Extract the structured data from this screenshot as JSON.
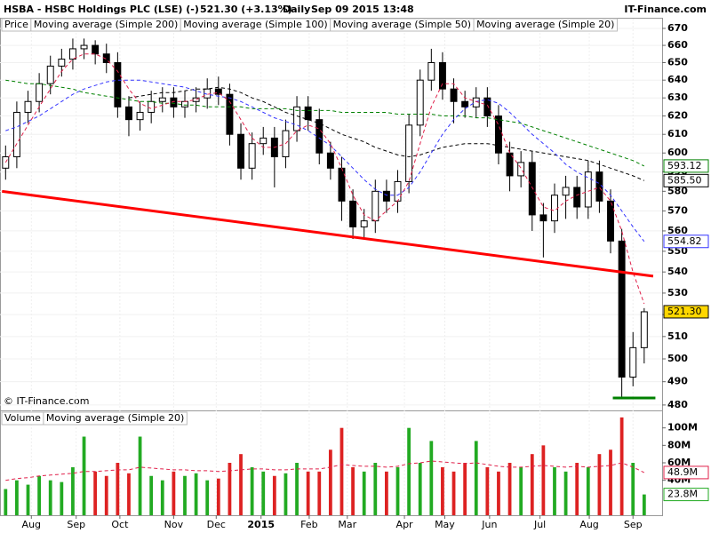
{
  "header": {
    "symbol": "HSBA - HSBC Holdings PLC (LSE) (-)",
    "quote": "521.30 (+3.13%)",
    "interval": "Daily",
    "timestamp": "Sep 09 2015 13:48",
    "brand": "IT-Finance.com"
  },
  "chart_data": [
    {
      "type": "candlestick",
      "log_scale": true,
      "ylim": [
        477.7,
        675.8
      ],
      "xlim": [
        -0.5,
        58.6
      ],
      "yticks": [
        480,
        490,
        500,
        510,
        520,
        530,
        540,
        550,
        560,
        570,
        580,
        590,
        600,
        610,
        620,
        630,
        640,
        650,
        660,
        670
      ],
      "annotations": [
        "© IT-Finance.com"
      ],
      "series": [
        {
          "name": "Price",
          "color": "#000000",
          "badge": "521.30",
          "open": [
            592,
            598,
            622,
            628,
            638,
            648,
            652,
            658,
            660,
            655,
            650,
            625,
            618,
            622,
            628,
            630,
            625,
            628,
            630,
            635,
            632,
            610,
            592,
            605,
            608,
            598,
            612,
            625,
            618,
            600,
            592,
            575,
            562,
            565,
            580,
            575,
            585,
            615,
            640,
            650,
            635,
            628,
            625,
            630,
            620,
            600,
            588,
            595,
            568,
            565,
            578,
            582,
            572,
            590,
            575,
            555,
            492,
            505
          ],
          "high": [
            604,
            628,
            634,
            644,
            654,
            658,
            664,
            664,
            663,
            661,
            656,
            631,
            628,
            634,
            636,
            636,
            634,
            636,
            641,
            642,
            638,
            616,
            611,
            614,
            614,
            618,
            631,
            631,
            624,
            606,
            598,
            581,
            571,
            586,
            586,
            591,
            621,
            646,
            658,
            656,
            641,
            634,
            636,
            636,
            626,
            606,
            601,
            601,
            574,
            584,
            588,
            588,
            596,
            596,
            581,
            561,
            512,
            523
          ],
          "low": [
            586,
            592,
            616,
            622,
            632,
            642,
            646,
            652,
            649,
            644,
            619,
            609,
            612,
            616,
            622,
            619,
            619,
            622,
            624,
            626,
            604,
            586,
            586,
            599,
            582,
            592,
            606,
            612,
            594,
            586,
            565,
            556,
            556,
            559,
            569,
            569,
            579,
            609,
            634,
            629,
            616,
            619,
            619,
            614,
            594,
            580,
            582,
            560,
            547,
            559,
            566,
            566,
            566,
            569,
            549,
            483,
            488,
            498
          ],
          "close": [
            598,
            622,
            628,
            638,
            648,
            652,
            658,
            660,
            655,
            650,
            625,
            618,
            622,
            628,
            630,
            625,
            628,
            630,
            635,
            632,
            610,
            592,
            605,
            608,
            598,
            612,
            625,
            618,
            600,
            592,
            575,
            562,
            565,
            580,
            575,
            585,
            615,
            640,
            650,
            635,
            628,
            625,
            630,
            620,
            600,
            588,
            595,
            568,
            565,
            578,
            582,
            572,
            590,
            575,
            555,
            492,
            505,
            521.3
          ]
        },
        {
          "name": "Moving average (Simple 200)",
          "color": "#008000",
          "badge": "593.12",
          "values": [
            640,
            639,
            638,
            638,
            637,
            636,
            635,
            633,
            632,
            631,
            630,
            629,
            628,
            628,
            627,
            627,
            626,
            626,
            625,
            625,
            625,
            625,
            624,
            624,
            624,
            624,
            623,
            623,
            623,
            623,
            622,
            622,
            622,
            622,
            622,
            621,
            621,
            621,
            621,
            620,
            620,
            620,
            619,
            619,
            618,
            617,
            616,
            614,
            612,
            610,
            608,
            606,
            604,
            602,
            600,
            598,
            596,
            593.12
          ]
        },
        {
          "name": "Moving average (Simple 100)",
          "color": "#000000",
          "badge": "585.50",
          "values": [
            null,
            null,
            null,
            null,
            null,
            null,
            null,
            null,
            null,
            null,
            null,
            630,
            631,
            632,
            633,
            633,
            634,
            635,
            635,
            636,
            635,
            633,
            630,
            628,
            625,
            622,
            620,
            618,
            616,
            613,
            610,
            608,
            606,
            603,
            601,
            599,
            598,
            599,
            601,
            603,
            604,
            605,
            605,
            605,
            604,
            603,
            602,
            601,
            600,
            599,
            598,
            597,
            596,
            594,
            592,
            590,
            588,
            585.5
          ]
        },
        {
          "name": "Moving average (Simple 50)",
          "color": "#3333ff",
          "badge": "554.82",
          "values": [
            612,
            614,
            617,
            620,
            624,
            628,
            632,
            635,
            637,
            639,
            640,
            640,
            640,
            639,
            638,
            637,
            636,
            634,
            632,
            631,
            630,
            628,
            625,
            622,
            619,
            617,
            615,
            612,
            608,
            604,
            598,
            592,
            586,
            581,
            578,
            578,
            582,
            590,
            600,
            610,
            618,
            624,
            628,
            629,
            627,
            622,
            616,
            610,
            605,
            600,
            594,
            590,
            587,
            584,
            578,
            570,
            562,
            554.82
          ]
        },
        {
          "name": "Moving average (Simple 20)",
          "color": "#e0204a",
          "values": [
            595,
            605,
            615,
            625,
            635,
            645,
            652,
            655,
            655,
            652,
            645,
            635,
            627,
            624,
            626,
            628,
            628,
            629,
            632,
            633,
            628,
            618,
            608,
            603,
            603,
            605,
            612,
            615,
            613,
            605,
            592,
            578,
            568,
            565,
            570,
            575,
            585,
            605,
            625,
            638,
            638,
            630,
            628,
            626,
            615,
            600,
            592,
            582,
            572,
            570,
            575,
            578,
            580,
            582,
            575,
            560,
            540,
            525
          ]
        }
      ],
      "trendlines": [
        {
          "color": "#ff0000",
          "x": [
            -0.32,
            57.8
          ],
          "y": [
            580,
            538
          ]
        },
        {
          "color": "#008000",
          "x": [
            54.2,
            58.0
          ],
          "y": [
            483,
            483
          ]
        }
      ]
    },
    {
      "type": "volume",
      "ylim": [
        0,
        119
      ],
      "xlim": [
        -0.5,
        58.6
      ],
      "yticks": [
        {
          "value": 40,
          "label": "40M"
        },
        {
          "value": 60,
          "label": "60M"
        },
        {
          "value": 80,
          "label": "80M"
        },
        {
          "value": 100,
          "label": "100M"
        }
      ],
      "xticks": [
        {
          "value": 2.3,
          "label": "Aug"
        },
        {
          "value": 6.3,
          "label": "Sep"
        },
        {
          "value": 10.2,
          "label": "Oct"
        },
        {
          "value": 15,
          "label": "Nov"
        },
        {
          "value": 18.8,
          "label": "Dec"
        },
        {
          "value": 22.8,
          "label": "2015"
        },
        {
          "value": 27.1,
          "label": "Feb"
        },
        {
          "value": 30.5,
          "label": "Mar"
        },
        {
          "value": 35.6,
          "label": "Apr"
        },
        {
          "value": 39.2,
          "label": "May"
        },
        {
          "value": 43.2,
          "label": "Jun"
        },
        {
          "value": 47.7,
          "label": "Jul"
        },
        {
          "value": 52.1,
          "label": "Aug"
        },
        {
          "value": 56,
          "label": "Sep"
        }
      ],
      "series": [
        {
          "name": "Volume",
          "color": "#22aa22",
          "down_color": "#dd2222",
          "badge": "23.8M",
          "values": [
            30,
            40,
            35,
            45,
            40,
            38,
            55,
            90,
            50,
            45,
            60,
            48,
            90,
            45,
            40,
            50,
            45,
            48,
            40,
            42,
            60,
            70,
            55,
            50,
            45,
            48,
            60,
            50,
            50,
            75,
            100,
            55,
            50,
            60,
            50,
            55,
            100,
            60,
            85,
            55,
            50,
            60,
            85,
            55,
            50,
            60,
            55,
            70,
            80,
            55,
            50,
            60,
            55,
            70,
            75,
            112,
            60,
            23.8
          ]
        },
        {
          "name": "Moving average (Simple 20)",
          "color": "#e0204a",
          "badge": "48.9M",
          "values": [
            40,
            42,
            43,
            45,
            46,
            47,
            48,
            50,
            50,
            51,
            52,
            52,
            55,
            54,
            53,
            52,
            52,
            51,
            51,
            50,
            51,
            52,
            53,
            53,
            52,
            52,
            53,
            53,
            53,
            55,
            58,
            57,
            56,
            56,
            55,
            56,
            59,
            60,
            62,
            61,
            60,
            59,
            60,
            58,
            56,
            55,
            55,
            56,
            57,
            56,
            55,
            56,
            55,
            56,
            57,
            60,
            55,
            48.9
          ]
        }
      ]
    }
  ]
}
